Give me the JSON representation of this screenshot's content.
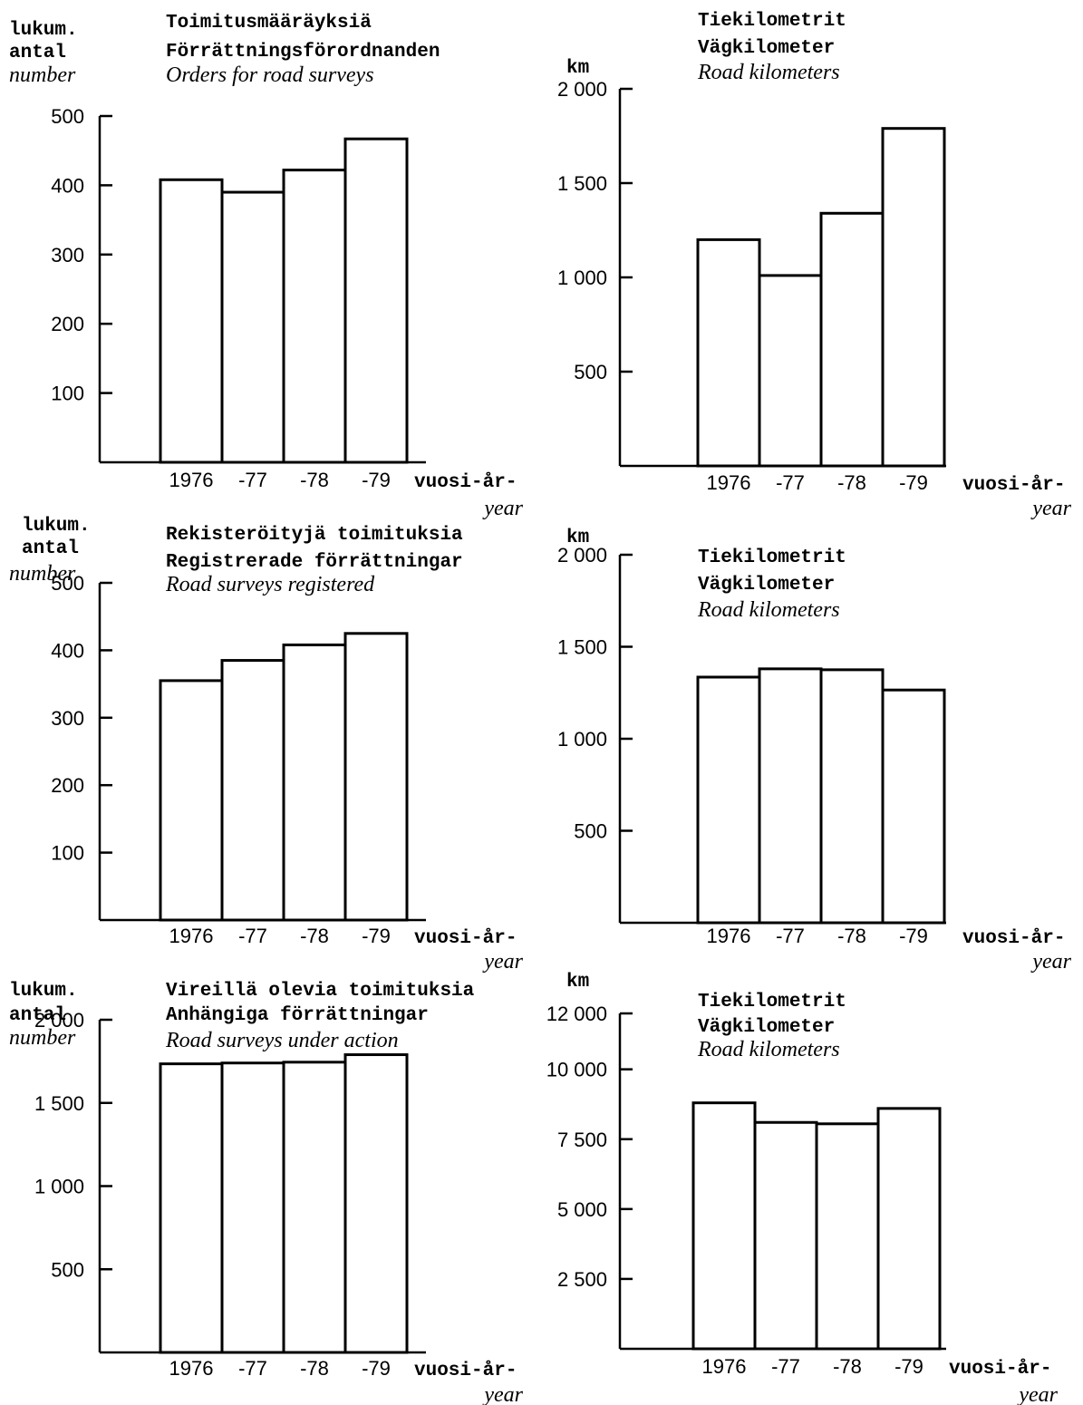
{
  "chart_data": [
    {
      "type": "bar",
      "title": [
        "Toimitusmääräyksiä",
        "Förrättningsförordnanden",
        "Orders for road surveys"
      ],
      "ylabel": [
        "lukum.",
        "antal",
        "number"
      ],
      "xlabel": [
        "vuosi-år-",
        "year"
      ],
      "categories": [
        "1976",
        "-77",
        "-78",
        "-79"
      ],
      "values": [
        408,
        390,
        422,
        467
      ],
      "yticks": [
        {
          "v": 100,
          "label": "100"
        },
        {
          "v": 200,
          "label": "200"
        },
        {
          "v": 300,
          "label": "300"
        },
        {
          "v": 400,
          "label": "400"
        },
        {
          "v": 500,
          "label": "500"
        }
      ],
      "ylim": [
        0,
        500
      ]
    },
    {
      "type": "bar",
      "title": [
        "Tiekilometrit",
        "Vägkilometer",
        "Road kilometers"
      ],
      "ylabel": [
        "km"
      ],
      "xlabel": [
        "vuosi-år-",
        "year"
      ],
      "categories": [
        "1976",
        "-77",
        "-78",
        "-79"
      ],
      "values": [
        1200,
        1010,
        1340,
        1790
      ],
      "yticks": [
        {
          "v": 500,
          "label": "500"
        },
        {
          "v": 1000,
          "label": "1 000"
        },
        {
          "v": 1500,
          "label": "1 500"
        },
        {
          "v": 2000,
          "label": "2 000"
        }
      ],
      "ylim": [
        0,
        2000
      ]
    },
    {
      "type": "bar",
      "title": [
        "Rekisteröityjä toimituksia",
        "Registrerade förrättningar",
        "Road surveys registered"
      ],
      "ylabel": [
        "lukum.",
        "antal",
        "number"
      ],
      "xlabel": [
        "vuosi-år-",
        "year"
      ],
      "categories": [
        "1976",
        "-77",
        "-78",
        "-79"
      ],
      "values": [
        355,
        385,
        408,
        425
      ],
      "yticks": [
        {
          "v": 100,
          "label": "100"
        },
        {
          "v": 200,
          "label": "200"
        },
        {
          "v": 300,
          "label": "300"
        },
        {
          "v": 400,
          "label": "400"
        },
        {
          "v": 500,
          "label": "500"
        }
      ],
      "ylim": [
        0,
        500
      ]
    },
    {
      "type": "bar",
      "title": [
        "Tiekilometrit",
        "Vägkilometer",
        "Road kilometers"
      ],
      "ylabel": [
        "km"
      ],
      "xlabel": [
        "vuosi-år-",
        "year"
      ],
      "categories": [
        "1976",
        "-77",
        "-78",
        "-79"
      ],
      "values": [
        1335,
        1380,
        1375,
        1265
      ],
      "yticks": [
        {
          "v": 500,
          "label": "500"
        },
        {
          "v": 1000,
          "label": "1 000"
        },
        {
          "v": 1500,
          "label": "1 500"
        },
        {
          "v": 2000,
          "label": "2 000"
        }
      ],
      "ylim": [
        0,
        2000
      ]
    },
    {
      "type": "bar",
      "title": [
        "Vireillä olevia toimituksia",
        "Anhängiga förrättningar",
        "Road surveys under action"
      ],
      "ylabel": [
        "lukum.",
        "antal",
        "number"
      ],
      "xlabel": [
        "vuosi-år-",
        "year"
      ],
      "categories": [
        "1976",
        "-77",
        "-78",
        "-79"
      ],
      "values": [
        1735,
        1740,
        1745,
        1790
      ],
      "yticks": [
        {
          "v": 500,
          "label": "500"
        },
        {
          "v": 1000,
          "label": "1 000"
        },
        {
          "v": 1500,
          "label": "1 500"
        },
        {
          "v": 2000,
          "label": "2 000"
        }
      ],
      "ylim": [
        0,
        2000
      ]
    },
    {
      "type": "bar",
      "title": [
        "Tiekilometrit",
        "Vägkilometer",
        "Road kilometers"
      ],
      "ylabel": [
        "km"
      ],
      "xlabel": [
        "vuosi-år-",
        "year"
      ],
      "categories": [
        "1976",
        "-77",
        "-78",
        "-79"
      ],
      "values": [
        8800,
        8100,
        8050,
        8600
      ],
      "yticks": [
        {
          "v": 2500,
          "label": "2 500"
        },
        {
          "v": 5000,
          "label": "5 000"
        },
        {
          "v": 7500,
          "label": "7 500"
        },
        {
          "v": 10000,
          "label": "10 000"
        },
        {
          "v": 12000,
          "label": "12 000"
        }
      ],
      "ylim": [
        0,
        12000
      ]
    }
  ]
}
